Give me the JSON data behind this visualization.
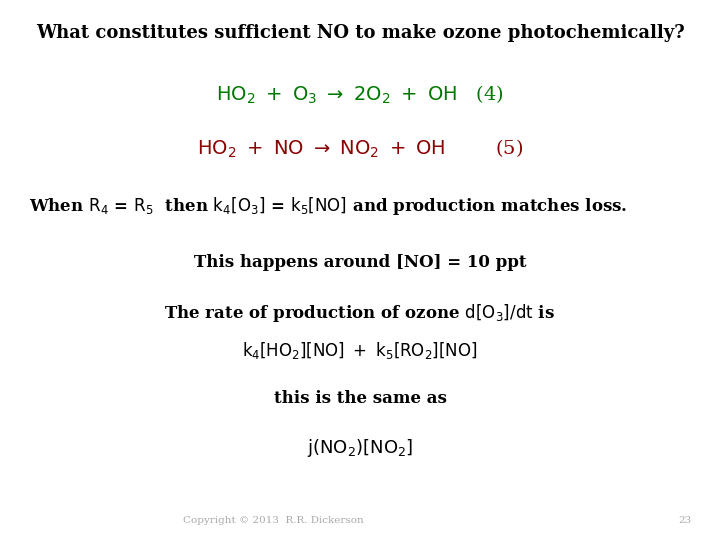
{
  "bg_color": "#ffffff",
  "title_text": "What constitutes sufficient NO to make ozone photochemically?",
  "title_color": "#000000",
  "title_fontsize": 13,
  "eq1_color": "#007700",
  "eq2_color": "#8B0000",
  "body_color": "#000000",
  "copyright_text": "Copyright © 2013  R.R. Dickerson",
  "page_num": "23",
  "figsize": [
    7.2,
    5.4
  ],
  "dpi": 100,
  "eq_fontsize": 14,
  "body_fontsize": 12,
  "small_fontsize": 7.5
}
